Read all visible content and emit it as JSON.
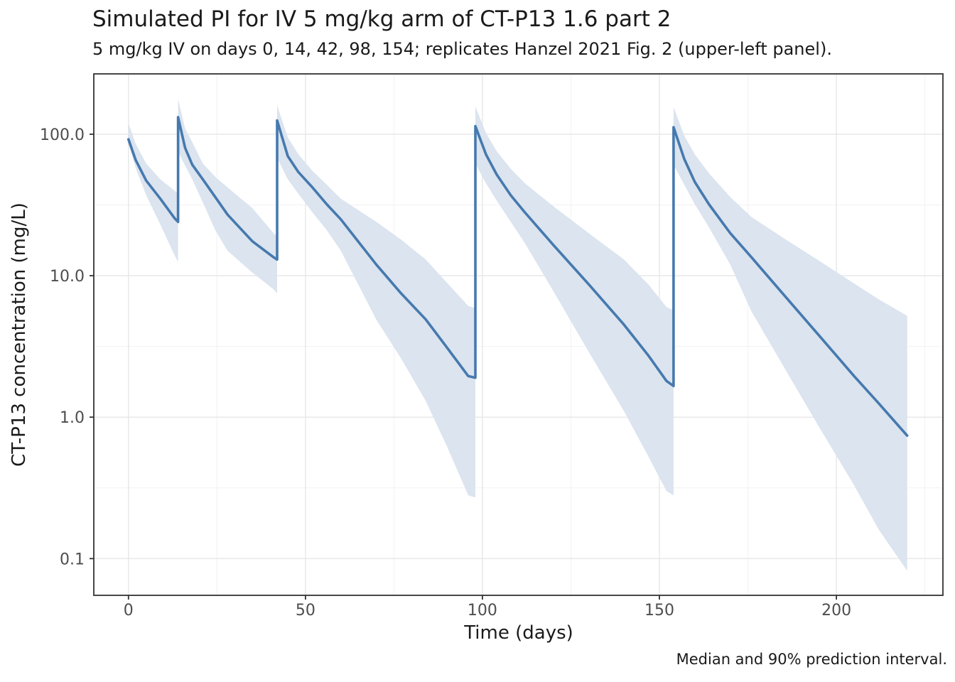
{
  "header": {
    "title": "Simulated PI for IV 5 mg/kg arm of CT-P13 1.6 part 2",
    "subtitle": "5 mg/kg IV on days 0, 14, 42, 98, 154; replicates Hanzel 2021 Fig. 2 (upper-left panel).",
    "caption": "Median and 90% prediction interval."
  },
  "chart_data": {
    "type": "line",
    "title": "Simulated PI for IV 5 mg/kg arm of CT-P13 1.6 part 2",
    "subtitle": "5 mg/kg IV on days 0, 14, 42, 98, 154; replicates Hanzel 2021 Fig. 2 (upper-left panel).",
    "caption": "Median and 90% prediction interval.",
    "xlabel": "Time (days)",
    "ylabel": "CT-P13 concentration (mg/L)",
    "y_scale": "log10",
    "grid": true,
    "legend": "none",
    "dose_mg_per_kg": 5,
    "dose_days": [
      0,
      14,
      42,
      98,
      154
    ],
    "x_axis": {
      "major_ticks": [
        0,
        50,
        100,
        150,
        200
      ],
      "tick_labels": [
        "0",
        "50",
        "100",
        "150",
        "200"
      ],
      "minor_ticks": [
        25,
        75,
        125,
        175,
        225
      ],
      "range_days": [
        -9.8,
        230.1
      ]
    },
    "y_axis": {
      "major_ticks": [
        100,
        10,
        1,
        0.1
      ],
      "tick_labels": [
        "100.0",
        "10.0",
        "1.0",
        "0.1"
      ],
      "minor_ticks": [
        31.623,
        3.1623,
        0.31623
      ],
      "range": [
        0.055,
        267
      ]
    },
    "series_names": {
      "band": "90% prediction interval",
      "line": "Median"
    },
    "points_format": [
      "day",
      "p5_lower",
      "median",
      "p95_upper"
    ],
    "points": [
      [
        0,
        86,
        92,
        120
      ],
      [
        2,
        58,
        66,
        86
      ],
      [
        5,
        37,
        47,
        62
      ],
      [
        9,
        23,
        35,
        48
      ],
      [
        13,
        14,
        25.5,
        40
      ],
      [
        14,
        12.5,
        24,
        38
      ],
      [
        14,
        75,
        132,
        178
      ],
      [
        16,
        60,
        80,
        110
      ],
      [
        18,
        48,
        61,
        88
      ],
      [
        21,
        33,
        48,
        62
      ],
      [
        24.5,
        21,
        36,
        50
      ],
      [
        28,
        15,
        27,
        42
      ],
      [
        35,
        10.5,
        17.5,
        30
      ],
      [
        41,
        8,
        13.5,
        20
      ],
      [
        42,
        7.5,
        13,
        19
      ],
      [
        42,
        68,
        125,
        160
      ],
      [
        45,
        48,
        70,
        95
      ],
      [
        48,
        38,
        54,
        72
      ],
      [
        52,
        28,
        42,
        55
      ],
      [
        56,
        21,
        32,
        44
      ],
      [
        60,
        15,
        25,
        35
      ],
      [
        70,
        4.9,
        12,
        24
      ],
      [
        77,
        2.6,
        7.5,
        18
      ],
      [
        84,
        1.3,
        4.9,
        13
      ],
      [
        90,
        0.62,
        3.1,
        8.9
      ],
      [
        96,
        0.28,
        1.95,
        6.1
      ],
      [
        98,
        0.27,
        1.9,
        5.9
      ],
      [
        98,
        62,
        114,
        157
      ],
      [
        101,
        45,
        72,
        102
      ],
      [
        104,
        34,
        52,
        76
      ],
      [
        108,
        24,
        37,
        57
      ],
      [
        112,
        17,
        28,
        45
      ],
      [
        120,
        7.8,
        16.5,
        31
      ],
      [
        130,
        2.9,
        8.7,
        20
      ],
      [
        140,
        1.1,
        4.5,
        13
      ],
      [
        147,
        0.52,
        2.7,
        8.6
      ],
      [
        152,
        0.3,
        1.8,
        6.0
      ],
      [
        154,
        0.28,
        1.66,
        5.7
      ],
      [
        154,
        61,
        112,
        156
      ],
      [
        157,
        44,
        67,
        98
      ],
      [
        160,
        32,
        46,
        72
      ],
      [
        164,
        22,
        32,
        53
      ],
      [
        170,
        12,
        20,
        36
      ],
      [
        176,
        5.6,
        13.5,
        26
      ],
      [
        185,
        2.3,
        7.4,
        18.5
      ],
      [
        195,
        0.86,
        3.8,
        12.8
      ],
      [
        205,
        0.33,
        1.95,
        8.8
      ],
      [
        212,
        0.16,
        1.25,
        6.8
      ],
      [
        220,
        0.082,
        0.74,
        5.2
      ]
    ]
  },
  "colors": {
    "median_line": "#4679ae",
    "pi_band": "#dbe4ef",
    "panel_border": "#333333",
    "grid_major": "#e8e8e8",
    "grid_minor": "#f2f2f2",
    "tick_mark": "#333333",
    "tick_label": "#4d4d4d"
  }
}
